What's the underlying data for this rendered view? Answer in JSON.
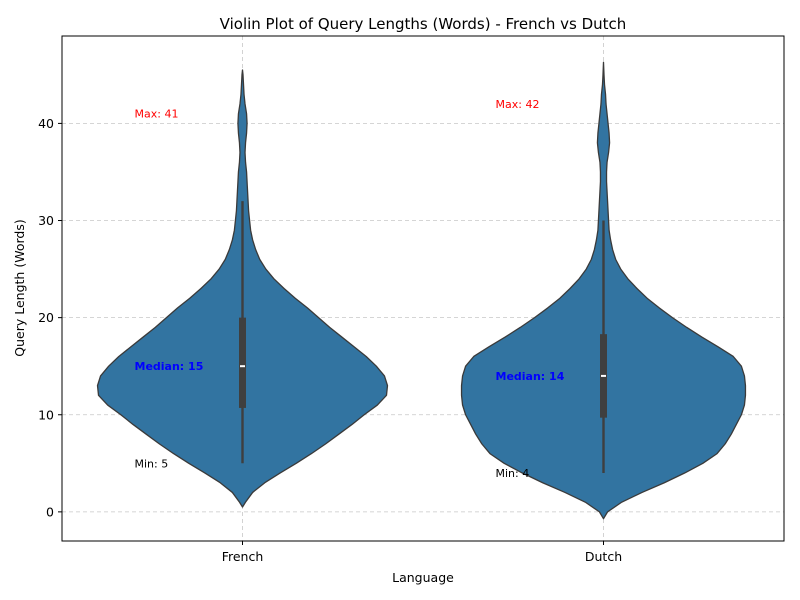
{
  "chart_data": {
    "type": "violin",
    "title": "Violin Plot of Query Lengths (Words) - French vs Dutch",
    "xlabel": "Language",
    "ylabel": "Query Length (Words)",
    "ylim": [
      -3,
      49
    ],
    "yticks": [
      0,
      10,
      20,
      30,
      40
    ],
    "grid": true,
    "color": "#3274a1",
    "categories": [
      "French",
      "Dutch"
    ],
    "series": [
      {
        "name": "French",
        "stats": {
          "min": 5,
          "q1": 10.7,
          "median": 15,
          "q3": 20,
          "whisker_high": 32,
          "max": 41
        },
        "density": [
          [
            0.5,
            0.0
          ],
          [
            1,
            0.03
          ],
          [
            2,
            0.1
          ],
          [
            3,
            0.22
          ],
          [
            4,
            0.37
          ],
          [
            5,
            0.53
          ],
          [
            6,
            0.68
          ],
          [
            7,
            0.82
          ],
          [
            8,
            0.95
          ],
          [
            9,
            1.08
          ],
          [
            10,
            1.2
          ],
          [
            11,
            1.33
          ],
          [
            12,
            1.42
          ],
          [
            13,
            1.43
          ],
          [
            14,
            1.4
          ],
          [
            15,
            1.32
          ],
          [
            16,
            1.22
          ],
          [
            17,
            1.1
          ],
          [
            18,
            0.98
          ],
          [
            19,
            0.86
          ],
          [
            20,
            0.75
          ],
          [
            21,
            0.64
          ],
          [
            22,
            0.52
          ],
          [
            23,
            0.41
          ],
          [
            24,
            0.31
          ],
          [
            25,
            0.23
          ],
          [
            26,
            0.17
          ],
          [
            27,
            0.13
          ],
          [
            28,
            0.1
          ],
          [
            29,
            0.08
          ],
          [
            30,
            0.07
          ],
          [
            31,
            0.06
          ],
          [
            32,
            0.055
          ],
          [
            33,
            0.05
          ],
          [
            34,
            0.045
          ],
          [
            35,
            0.04
          ],
          [
            36,
            0.03
          ],
          [
            37,
            0.025
          ],
          [
            38,
            0.03
          ],
          [
            39,
            0.04
          ],
          [
            40,
            0.045
          ],
          [
            41,
            0.04
          ],
          [
            42,
            0.025
          ],
          [
            43,
            0.015
          ],
          [
            44,
            0.01
          ],
          [
            45,
            0.005
          ],
          [
            45.5,
            0.0
          ]
        ]
      },
      {
        "name": "Dutch",
        "stats": {
          "min": 4,
          "q1": 9.7,
          "median": 14,
          "q3": 18.3,
          "whisker_high": 30,
          "max": 42
        },
        "density": [
          [
            -0.7,
            0.0
          ],
          [
            0,
            0.04
          ],
          [
            1,
            0.18
          ],
          [
            2,
            0.38
          ],
          [
            3,
            0.6
          ],
          [
            4,
            0.8
          ],
          [
            5,
            0.98
          ],
          [
            6,
            1.12
          ],
          [
            7,
            1.2
          ],
          [
            8,
            1.26
          ],
          [
            9,
            1.31
          ],
          [
            10,
            1.36
          ],
          [
            11,
            1.39
          ],
          [
            12,
            1.4
          ],
          [
            13,
            1.4
          ],
          [
            14,
            1.39
          ],
          [
            15,
            1.36
          ],
          [
            16,
            1.28
          ],
          [
            17,
            1.13
          ],
          [
            18,
            0.97
          ],
          [
            19,
            0.82
          ],
          [
            20,
            0.68
          ],
          [
            21,
            0.55
          ],
          [
            22,
            0.43
          ],
          [
            23,
            0.33
          ],
          [
            24,
            0.24
          ],
          [
            25,
            0.17
          ],
          [
            26,
            0.12
          ],
          [
            27,
            0.09
          ],
          [
            28,
            0.07
          ],
          [
            29,
            0.055
          ],
          [
            30,
            0.05
          ],
          [
            31,
            0.045
          ],
          [
            32,
            0.04
          ],
          [
            33,
            0.035
          ],
          [
            34,
            0.03
          ],
          [
            35,
            0.03
          ],
          [
            36,
            0.035
          ],
          [
            37,
            0.05
          ],
          [
            38,
            0.06
          ],
          [
            39,
            0.055
          ],
          [
            40,
            0.045
          ],
          [
            41,
            0.035
          ],
          [
            42,
            0.025
          ],
          [
            43,
            0.02
          ],
          [
            44,
            0.01
          ],
          [
            45,
            0.005
          ],
          [
            46.3,
            0.0
          ]
        ]
      }
    ],
    "annotations": [
      {
        "series": "French",
        "text": "Max: 41",
        "y": 41,
        "color": "#ff0000",
        "weight": "normal"
      },
      {
        "series": "French",
        "text": "Median: 15",
        "y": 15,
        "color": "#0000ff",
        "weight": "bold"
      },
      {
        "series": "French",
        "text": "Min: 5",
        "y": 5,
        "color": "#000000",
        "weight": "normal"
      },
      {
        "series": "Dutch",
        "text": "Max: 42",
        "y": 42,
        "color": "#ff0000",
        "weight": "normal"
      },
      {
        "series": "Dutch",
        "text": "Median: 14",
        "y": 14,
        "color": "#0000ff",
        "weight": "bold"
      },
      {
        "series": "Dutch",
        "text": "Min: 4",
        "y": 4,
        "color": "#000000",
        "weight": "normal"
      }
    ]
  }
}
